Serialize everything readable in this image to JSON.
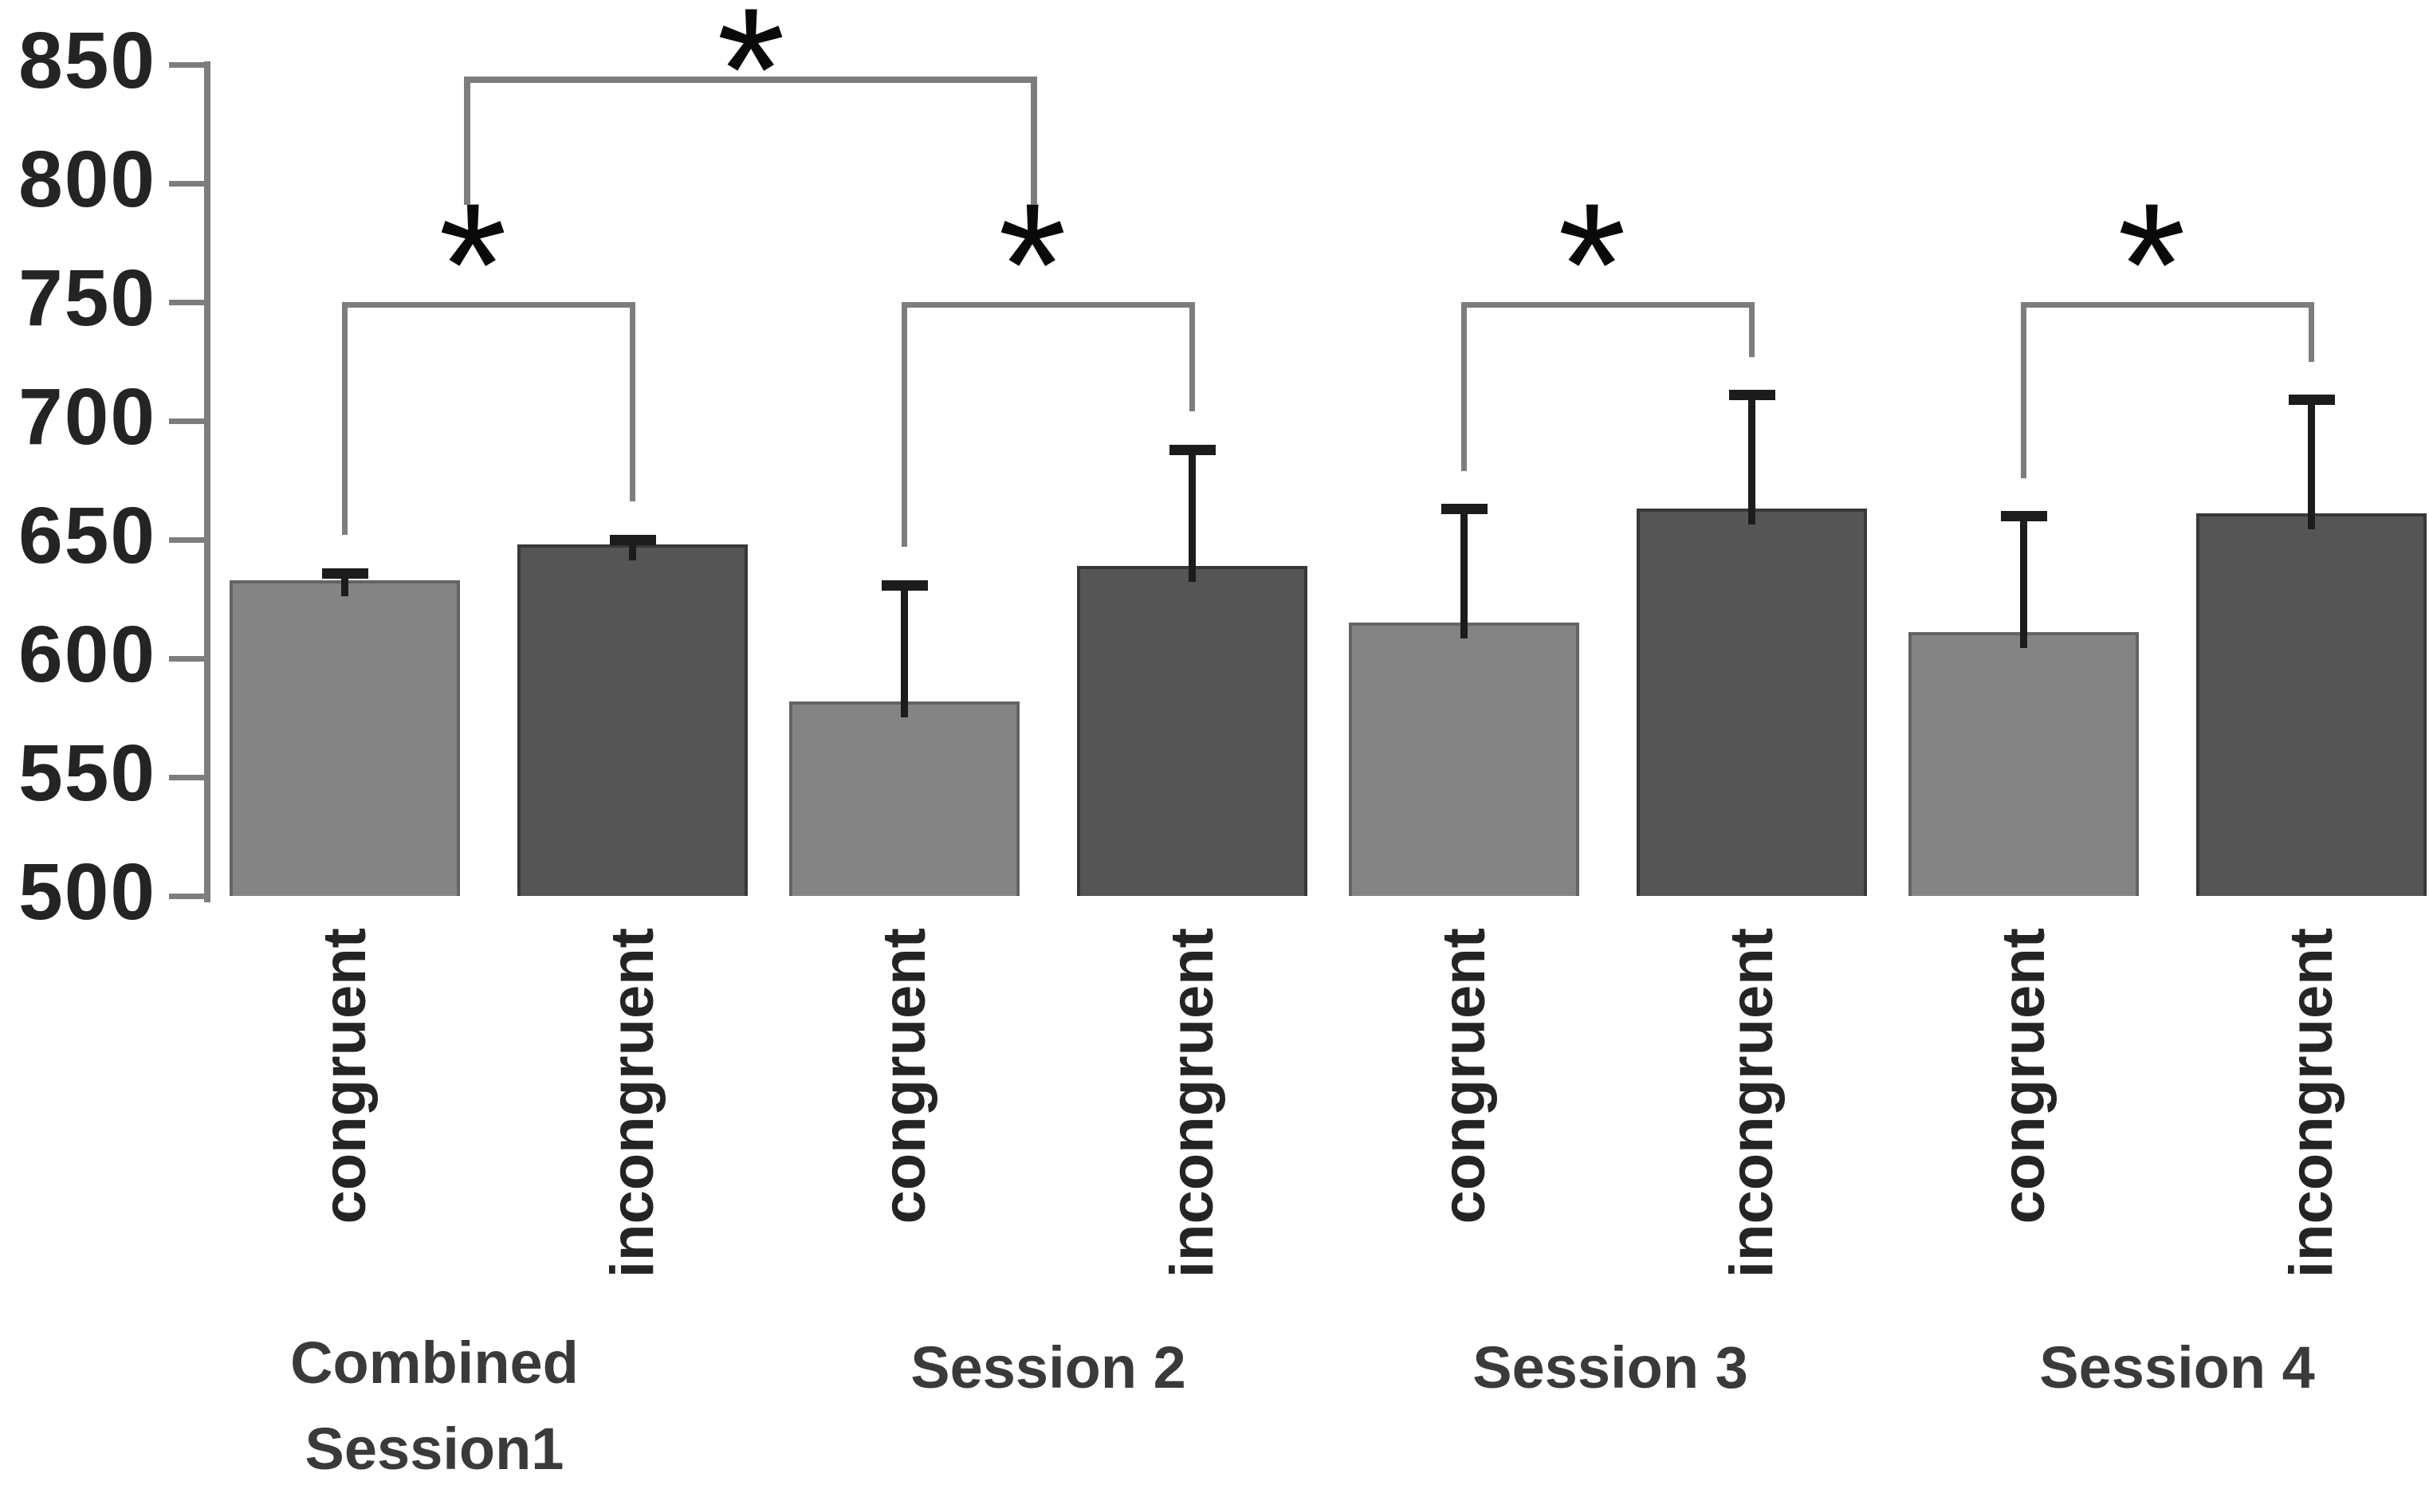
{
  "chart_data": {
    "type": "bar",
    "title": "",
    "xlabel": "",
    "ylabel": "",
    "y_axis": {
      "min": 500,
      "max": 850,
      "step": 50,
      "tick_labels": [
        "850",
        "800",
        "750",
        "700",
        "650",
        "600",
        "550",
        "500"
      ]
    },
    "grid": "off",
    "legend": "none",
    "categories": [
      "Combined Session1",
      "Session 2",
      "Session 3",
      "Session 4"
    ],
    "group_label_lines": [
      [
        "Combined",
        "Session1"
      ],
      [
        "Session 2"
      ],
      [
        "Session 3"
      ],
      [
        "Session 4"
      ]
    ],
    "bar_condition_labels": [
      "congruent",
      "incongruent"
    ],
    "series": [
      {
        "name": "congruent",
        "color": "#848484",
        "border_color": "#646464",
        "values": [
          633,
          582,
          615,
          611
        ],
        "error_bar_top": [
          638,
          633,
          665,
          662
        ]
      },
      {
        "name": "incongruent",
        "color": "#555555",
        "border_color": "#383838",
        "values": [
          648,
          639,
          663,
          661
        ],
        "error_bar_top": [
          652,
          690,
          713,
          711
        ]
      }
    ],
    "significance": {
      "within_pair_brackets": [
        {
          "group": 0,
          "level": 750,
          "label": "*"
        },
        {
          "group": 1,
          "level": 750,
          "label": "*"
        },
        {
          "group": 2,
          "level": 750,
          "label": "*"
        },
        {
          "group": 3,
          "level": 750,
          "label": "*"
        }
      ],
      "between_groups_bracket": {
        "from_group": 0,
        "to_group": 1,
        "level": 845,
        "leg_bottom": 791,
        "label": "*"
      }
    },
    "colors": {
      "axis": "#7d7d7d",
      "bracket": "#7d7d7d",
      "error_bar": "#1c1c1c",
      "y_label_text": "#242424",
      "x_label_text": "#242424",
      "group_label_text": "#3a3a3a",
      "asterisk": "#0a0a0a",
      "background": "#ffffff"
    }
  }
}
